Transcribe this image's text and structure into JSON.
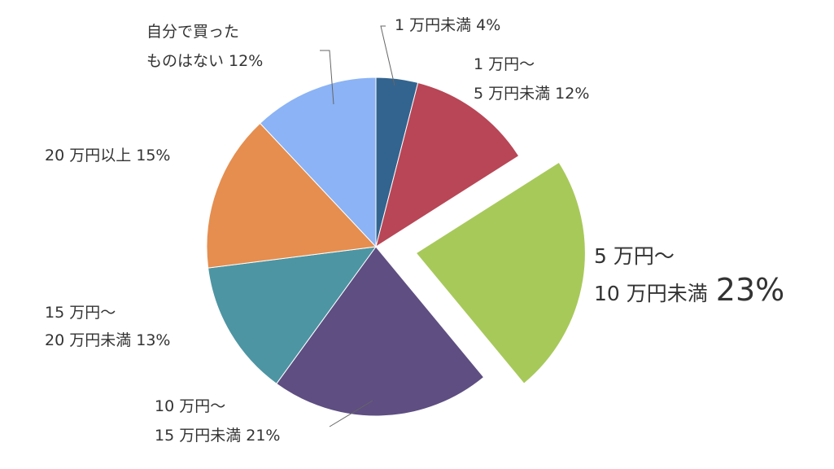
{
  "chart_data": {
    "type": "pie",
    "start_angle_deg": 0,
    "direction": "clockwise",
    "exploded_slice": "5万円～10万円未満",
    "slices": [
      {
        "category": "1万円未満",
        "value": 4,
        "label_lines": [
          "1 万円未満 4%"
        ],
        "color": "#33648F"
      },
      {
        "category": "1万円～5万円未満",
        "value": 12,
        "label_lines": [
          "1 万円～",
          "5 万円未満 12%"
        ],
        "color": "#B84656"
      },
      {
        "category": "5万円～10万円未満",
        "value": 23,
        "label_lines": [
          "5 万円～",
          "10 万円未満"
        ],
        "value_label": "23%",
        "color": "#A7C95A"
      },
      {
        "category": "10万円～15万円未満",
        "value": 21,
        "label_lines": [
          "10 万円～",
          "15 万円未満 21%"
        ],
        "color": "#5E4E82"
      },
      {
        "category": "15万円～20万円未満",
        "value": 13,
        "label_lines": [
          "15 万円～",
          "20 万円未満 13%"
        ],
        "color": "#4D95A3"
      },
      {
        "category": "20万円以上",
        "value": 15,
        "label_lines": [
          "20 万円以上 15%"
        ],
        "color": "#E58E4F"
      },
      {
        "category": "自分で買ったものはない",
        "value": 12,
        "label_lines": [
          "自分で買った",
          "ものはない 12%"
        ],
        "color": "#8BB3F5"
      }
    ]
  }
}
